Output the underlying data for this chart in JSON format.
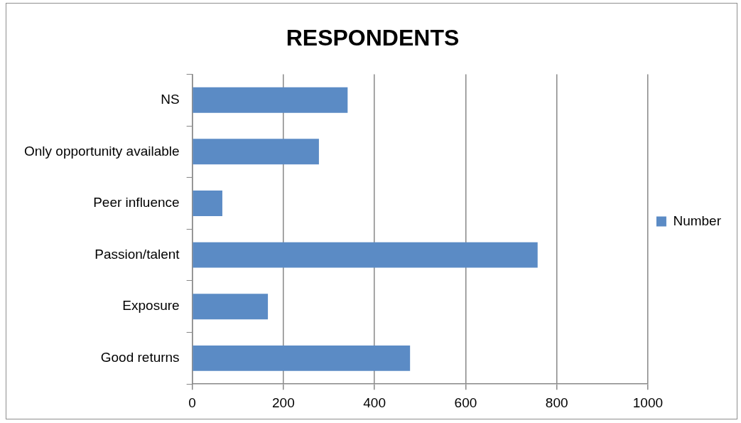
{
  "chart_data": {
    "type": "bar",
    "orientation": "horizontal",
    "title": "RESPONDENTS",
    "categories": [
      "NS",
      "Only opportunity available",
      "Peer influence",
      "Passion/talent",
      "Exposure",
      "Good returns"
    ],
    "series": [
      {
        "name": "Number",
        "color": "#5b8bc5",
        "values": [
          341,
          278,
          66,
          758,
          166,
          478
        ]
      }
    ],
    "xlim": [
      0,
      1000
    ],
    "xticks": [
      0,
      200,
      400,
      600,
      800,
      1000
    ],
    "grid": "x",
    "legend": "right"
  }
}
